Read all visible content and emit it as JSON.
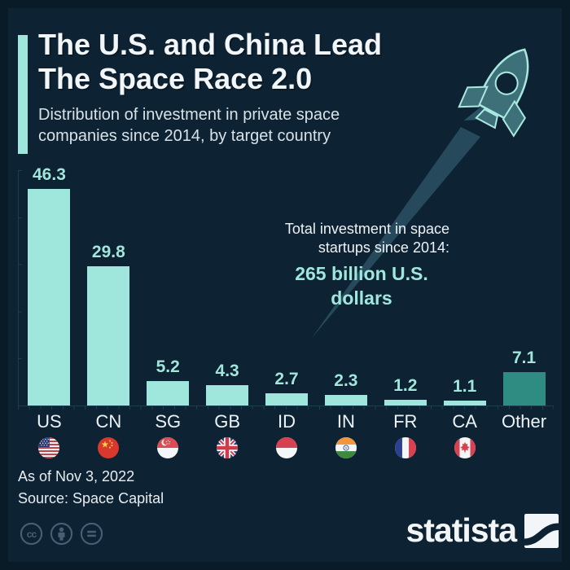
{
  "title": {
    "line1": "The U.S. and China Lead",
    "line2": "The Space Race 2.0"
  },
  "subtitle": {
    "line1": "Distribution of investment in private space",
    "line2": "companies since 2014, by target country"
  },
  "annotation": {
    "line1": "Total investment in space",
    "line2": "startups since 2014:",
    "highlight": "265 billion U.S. dollars"
  },
  "chart_data": {
    "type": "bar",
    "categories": [
      "US",
      "CN",
      "SG",
      "GB",
      "ID",
      "IN",
      "FR",
      "CA",
      "Other"
    ],
    "values": [
      46.3,
      29.8,
      5.2,
      4.3,
      2.7,
      2.3,
      1.2,
      1.1,
      7.1
    ],
    "value_labels": [
      "46.3",
      "29.8",
      "5.2",
      "4.3",
      "2.7",
      "2.3",
      "1.2",
      "1.1",
      "7.1"
    ],
    "flag_icons": [
      "us-flag",
      "cn-flag",
      "sg-flag",
      "gb-flag",
      "id-flag",
      "in-flag",
      "fr-flag",
      "ca-flag",
      null
    ],
    "bar_colors": [
      "#9fe6dd",
      "#9fe6dd",
      "#9fe6dd",
      "#9fe6dd",
      "#9fe6dd",
      "#9fe6dd",
      "#9fe6dd",
      "#9fe6dd",
      "#2e8c82"
    ],
    "ylim": [
      0,
      50
    ],
    "grid": false,
    "xlabel": "",
    "ylabel": "",
    "legend": null,
    "title": "The U.S. and China Lead The Space Race 2.0"
  },
  "footer": {
    "as_of": "As of Nov 3, 2022",
    "source": "Source: Space Capital"
  },
  "branding": {
    "logo_text": "statista",
    "logo_mark": "statista-s-icon"
  },
  "license_icons": [
    "creative-commons-icon",
    "attribution-icon",
    "no-derivatives-icon"
  ],
  "colors": {
    "background": "#0d2334",
    "frame": "#0a1b28",
    "accent_mint": "#9fe6dd",
    "accent_teal": "#2e8c82",
    "trail": "#264a5c",
    "rocket_fill": "#3e7079",
    "title_text": "#f2f6f8",
    "body_text": "#e7edf0"
  }
}
